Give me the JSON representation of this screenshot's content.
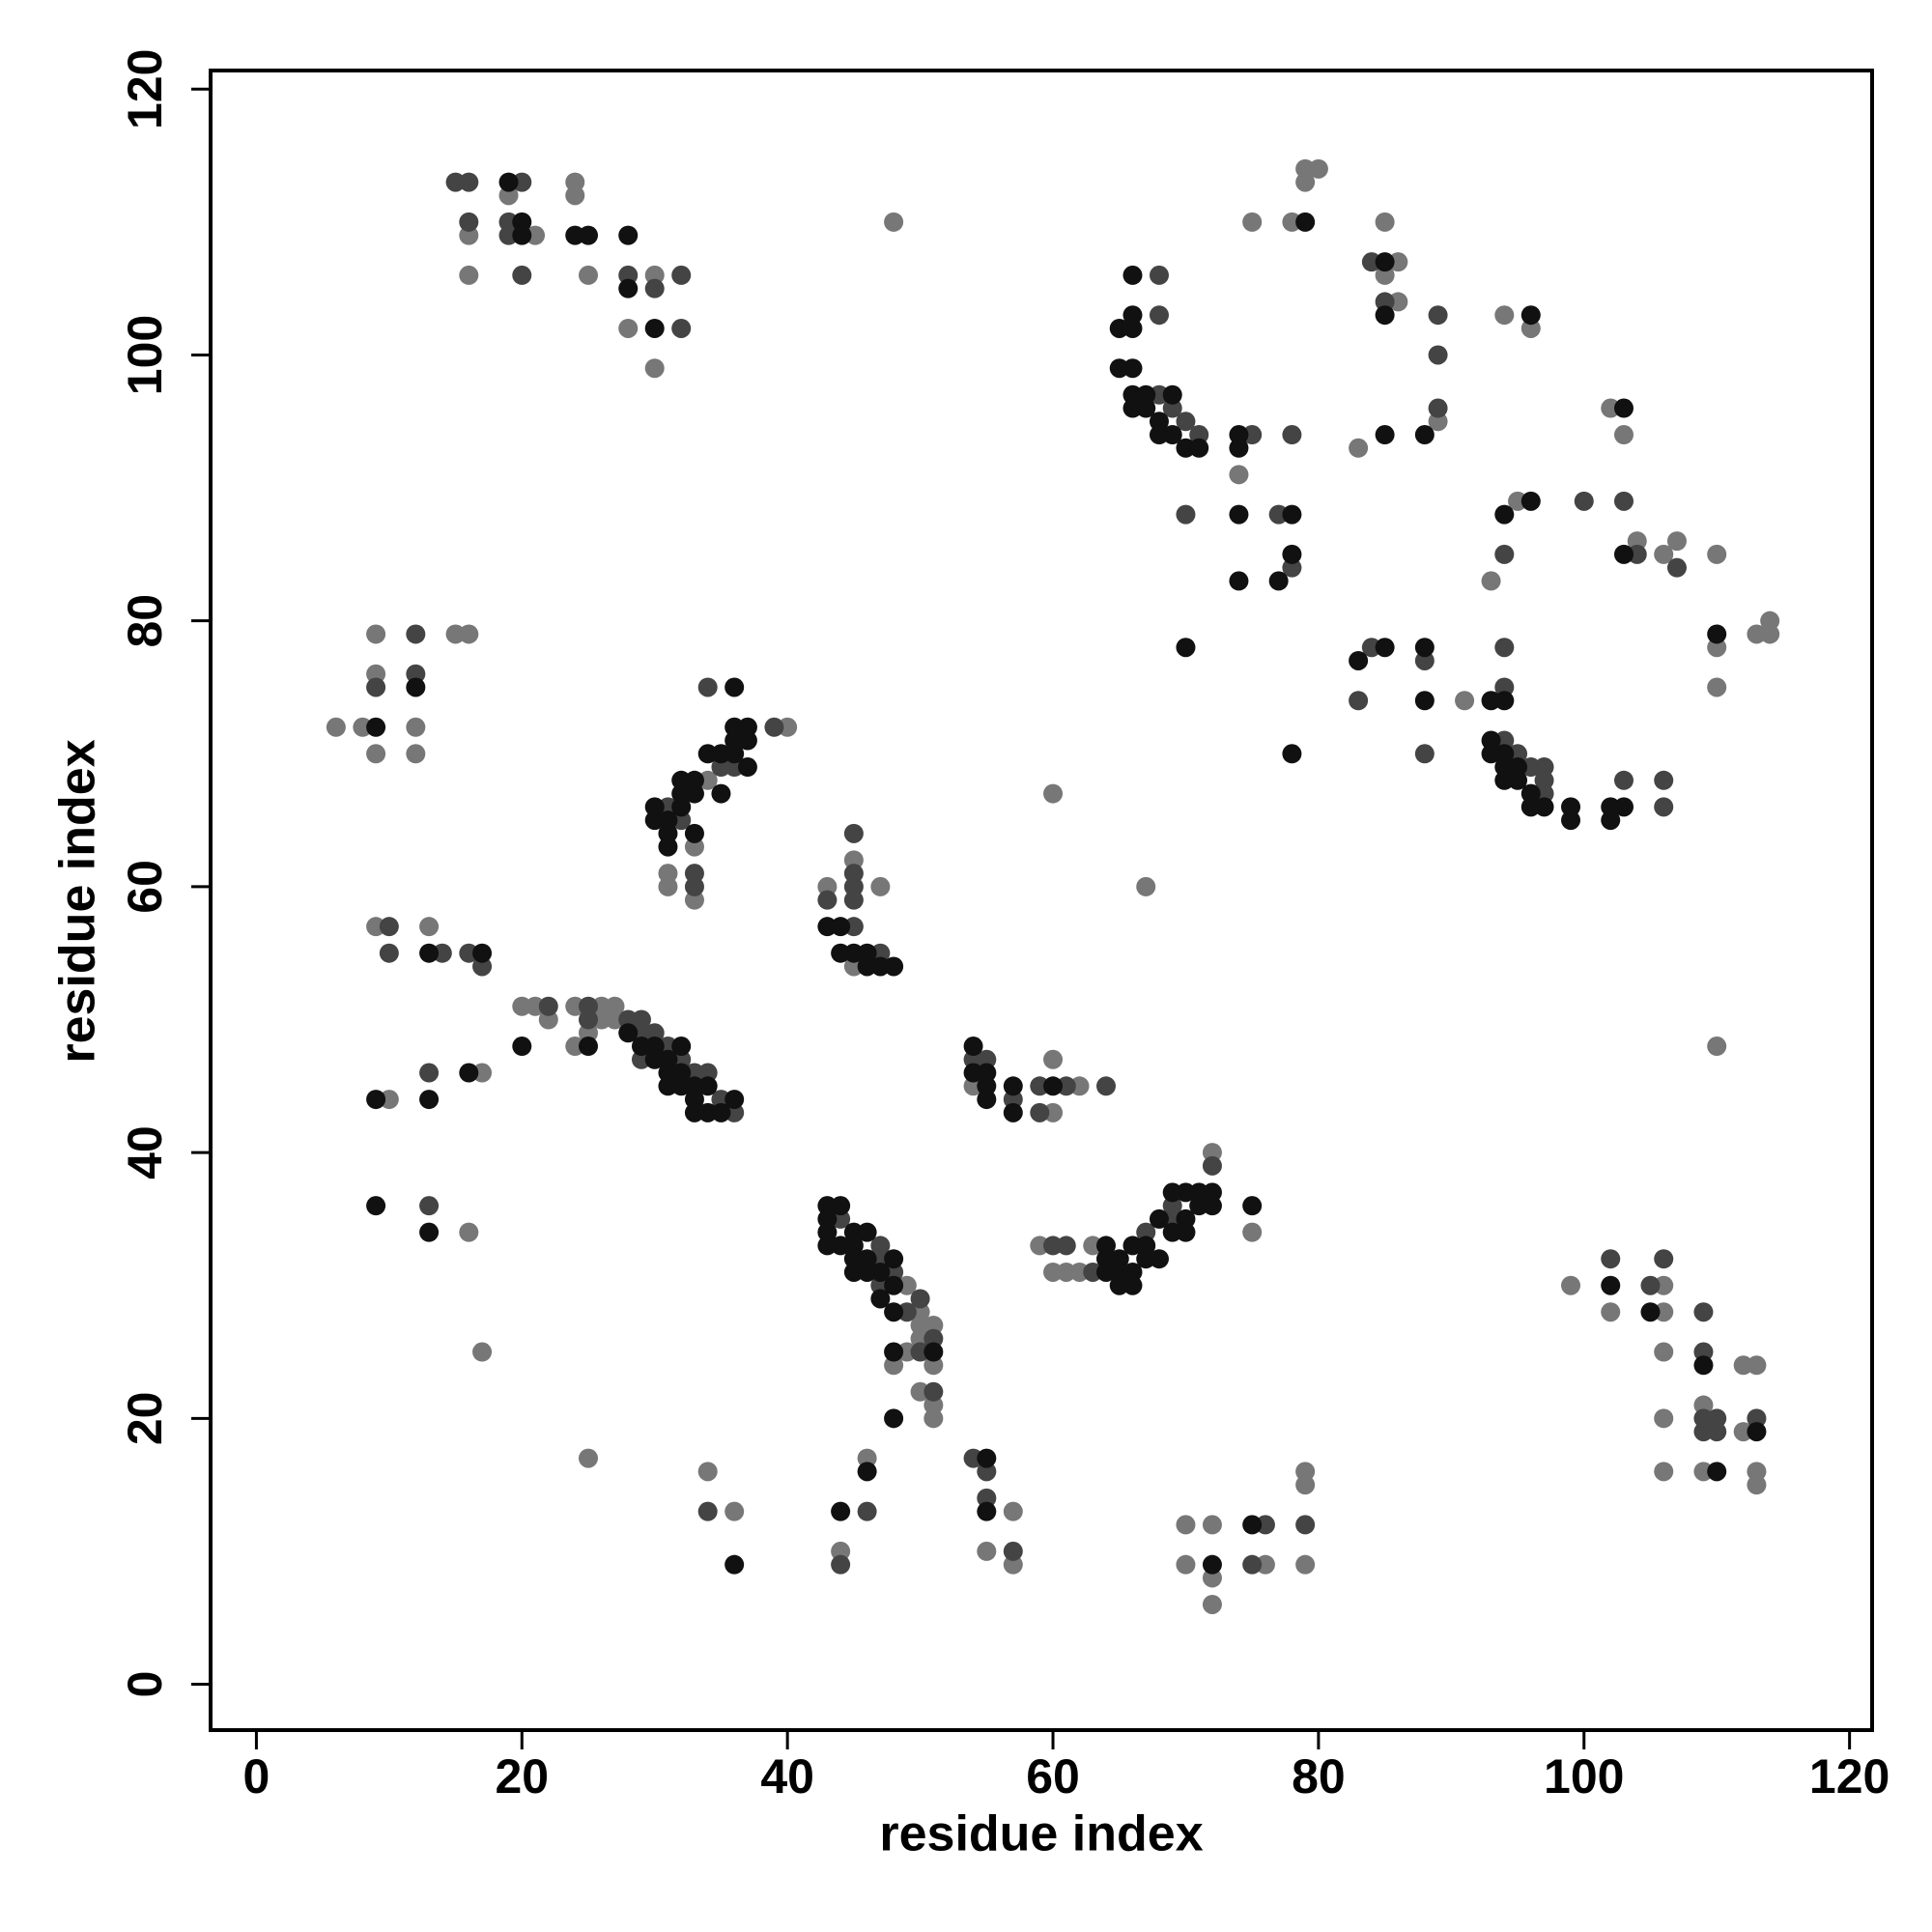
{
  "chart_data": {
    "type": "scatter",
    "x_label": "residue index",
    "y_label": "residue index",
    "xlim": [
      -3.45,
      121.7
    ],
    "ylim": [
      -3.45,
      121.4
    ],
    "xticks": [
      0,
      20,
      40,
      60,
      80,
      100,
      120
    ],
    "yticks": [
      0,
      20,
      40,
      60,
      80,
      100,
      120
    ],
    "grid": false,
    "series": [
      {
        "color": "#777777",
        "x": [
          24,
          16,
          19,
          24,
          21,
          16,
          25,
          30,
          28,
          30,
          48,
          79,
          80,
          79,
          75,
          78,
          85,
          86,
          85,
          86,
          94,
          96,
          89,
          102,
          103,
          83,
          74,
          60,
          67,
          95,
          104,
          106,
          107,
          110,
          93,
          110,
          113,
          114,
          114,
          110,
          110,
          91,
          6,
          8,
          9,
          15,
          16,
          9,
          12,
          9,
          12,
          34,
          40,
          33,
          31,
          31,
          33,
          43,
          45,
          47,
          45,
          9,
          13,
          20,
          21,
          22,
          24,
          26,
          27,
          26,
          27,
          25,
          24,
          17,
          10,
          54,
          60,
          60,
          62,
          16,
          17,
          49,
          50,
          51,
          50,
          50,
          49,
          48,
          51,
          50,
          51,
          51,
          59,
          63,
          60,
          61,
          62,
          72,
          75,
          25,
          34,
          36,
          44,
          46,
          57,
          55,
          57,
          70,
          72,
          70,
          72,
          72,
          76,
          79,
          79,
          79,
          99,
          102,
          106,
          106,
          106,
          112,
          113,
          109,
          112,
          106,
          106,
          109,
          113,
          113
        ],
        "y": [
          113,
          109,
          112,
          112,
          109,
          106,
          106,
          106,
          102,
          99,
          110,
          114,
          114,
          113,
          110,
          110,
          110,
          107,
          106,
          104,
          103,
          102,
          95,
          96,
          94,
          93,
          91,
          67,
          60,
          89,
          86,
          85,
          86,
          85,
          83,
          78,
          79,
          80,
          79,
          75,
          48,
          74,
          72,
          72,
          79,
          79,
          79,
          76,
          72,
          70,
          70,
          68,
          72,
          63,
          61,
          60,
          59,
          60,
          62,
          60,
          54,
          57,
          57,
          51,
          51,
          50,
          51,
          51,
          51,
          50,
          50,
          49,
          48,
          46,
          44,
          45,
          43,
          47,
          45,
          34,
          25,
          30,
          28,
          27,
          27,
          26,
          25,
          24,
          24,
          22,
          21,
          20,
          33,
          33,
          31,
          31,
          31,
          40,
          34,
          17,
          16,
          13,
          10,
          17,
          13,
          10,
          9,
          12,
          12,
          9,
          8,
          6,
          9,
          16,
          15,
          9,
          30,
          28,
          30,
          28,
          25,
          24,
          24,
          21,
          19,
          20,
          16,
          16,
          16,
          15
        ]
      },
      {
        "color": "#444444",
        "x": [
          15,
          16,
          20,
          16,
          19,
          19,
          20,
          28,
          32,
          30,
          32,
          84,
          85,
          89,
          89,
          68,
          68,
          68,
          69,
          70,
          71,
          75,
          78,
          89,
          70,
          77,
          78,
          100,
          103,
          94,
          104,
          107,
          83,
          84,
          88,
          94,
          94,
          88,
          94,
          95,
          96,
          97,
          97,
          97,
          103,
          106,
          106,
          12,
          12,
          9,
          31,
          32,
          35,
          36,
          39,
          34,
          33,
          33,
          45,
          45,
          45,
          43,
          45,
          45,
          47,
          10,
          10,
          14,
          16,
          17,
          22,
          25,
          25,
          28,
          29,
          29,
          30,
          31,
          29,
          32,
          33,
          34,
          35,
          36,
          13,
          54,
          55,
          57,
          59,
          59,
          61,
          64,
          13,
          44,
          47,
          47,
          48,
          47,
          50,
          49,
          51,
          50,
          51,
          60,
          61,
          63,
          67,
          69,
          69,
          72,
          34,
          46,
          44,
          54,
          55,
          55,
          57,
          76,
          75,
          79,
          102,
          105,
          106,
          109,
          109,
          109,
          110,
          113,
          109,
          110
        ],
        "y": [
          113,
          113,
          113,
          110,
          110,
          109,
          106,
          106,
          106,
          105,
          102,
          107,
          104,
          103,
          100,
          106,
          103,
          97,
          96,
          95,
          94,
          94,
          94,
          96,
          88,
          88,
          84,
          89,
          89,
          85,
          85,
          84,
          74,
          78,
          77,
          75,
          78,
          70,
          71,
          70,
          69,
          69,
          68,
          67,
          68,
          68,
          66,
          79,
          76,
          75,
          66,
          65,
          69,
          69,
          72,
          75,
          61,
          60,
          61,
          64,
          60,
          59,
          59,
          57,
          55,
          57,
          55,
          55,
          55,
          54,
          51,
          51,
          50,
          50,
          50,
          49,
          49,
          48,
          47,
          47,
          46,
          46,
          44,
          43,
          46,
          47,
          47,
          44,
          43,
          45,
          45,
          45,
          36,
          35,
          33,
          32,
          31,
          30,
          29,
          28,
          26,
          25,
          22,
          33,
          33,
          31,
          34,
          35,
          36,
          39,
          13,
          13,
          9,
          17,
          16,
          14,
          10,
          12,
          9,
          12,
          32,
          30,
          32,
          28,
          25,
          20,
          20,
          20,
          19,
          19
        ]
      },
      {
        "color": "#111111",
        "x": [
          19,
          20,
          20,
          24,
          25,
          28,
          28,
          30,
          79,
          85,
          85,
          96,
          66,
          66,
          65,
          66,
          65,
          66,
          66,
          67,
          69,
          66,
          67,
          68,
          68,
          69,
          70,
          71,
          74,
          74,
          85,
          88,
          103,
          74,
          78,
          78,
          74,
          77,
          70,
          78,
          94,
          96,
          103,
          110,
          83,
          85,
          88,
          88,
          93,
          94,
          93,
          93,
          94,
          94,
          95,
          94,
          95,
          96,
          96,
          97,
          99,
          99,
          102,
          103,
          102,
          9,
          12,
          30,
          32,
          33,
          30,
          31,
          31,
          33,
          32,
          33,
          34,
          35,
          35,
          36,
          36,
          37,
          36,
          37,
          37,
          36,
          31,
          32,
          43,
          44,
          44,
          45,
          46,
          46,
          47,
          48,
          13,
          17,
          28,
          20,
          25,
          29,
          30,
          32,
          30,
          31,
          31,
          32,
          31,
          32,
          33,
          34,
          33,
          36,
          33,
          34,
          35,
          16,
          9,
          13,
          54,
          54,
          55,
          55,
          55,
          57,
          57,
          60,
          9,
          13,
          43,
          44,
          43,
          43,
          45,
          46,
          43,
          44,
          45,
          45,
          46,
          48,
          45,
          46,
          47,
          48,
          47,
          48,
          48,
          51,
          48,
          64,
          64,
          65,
          64,
          66,
          67,
          65,
          66,
          65,
          66,
          67,
          68,
          68,
          70,
          69,
          70,
          70,
          71,
          72,
          69,
          71,
          72,
          75,
          36,
          44,
          46,
          55,
          55,
          72,
          75,
          102,
          105,
          109,
          113,
          110
        ],
        "y": [
          113,
          110,
          109,
          109,
          109,
          109,
          105,
          102,
          110,
          107,
          103,
          103,
          106,
          103,
          102,
          102,
          99,
          99,
          97,
          97,
          97,
          96,
          96,
          95,
          94,
          94,
          93,
          93,
          94,
          93,
          94,
          94,
          96,
          88,
          88,
          85,
          83,
          83,
          78,
          70,
          88,
          89,
          85,
          79,
          77,
          78,
          78,
          74,
          74,
          74,
          71,
          70,
          70,
          69,
          69,
          68,
          68,
          67,
          66,
          66,
          66,
          65,
          66,
          66,
          65,
          72,
          75,
          66,
          68,
          68,
          65,
          65,
          64,
          64,
          66,
          67,
          70,
          70,
          67,
          70,
          71,
          71,
          72,
          72,
          69,
          75,
          63,
          67,
          57,
          57,
          55,
          55,
          55,
          54,
          54,
          54,
          55,
          55,
          49,
          48,
          48,
          48,
          48,
          48,
          47,
          47,
          46,
          46,
          45,
          45,
          45,
          45,
          44,
          44,
          43,
          43,
          43,
          46,
          44,
          44,
          48,
          46,
          46,
          45,
          44,
          45,
          43,
          45,
          36,
          34,
          36,
          36,
          35,
          34,
          34,
          34,
          33,
          33,
          33,
          32,
          32,
          32,
          31,
          31,
          31,
          30,
          29,
          28,
          25,
          25,
          20,
          33,
          31,
          32,
          32,
          33,
          33,
          31,
          31,
          30,
          30,
          32,
          32,
          35,
          35,
          34,
          34,
          37,
          37,
          37,
          37,
          36,
          36,
          36,
          9,
          13,
          16,
          17,
          13,
          9,
          12,
          30,
          28,
          24,
          19,
          16
        ]
      }
    ]
  }
}
